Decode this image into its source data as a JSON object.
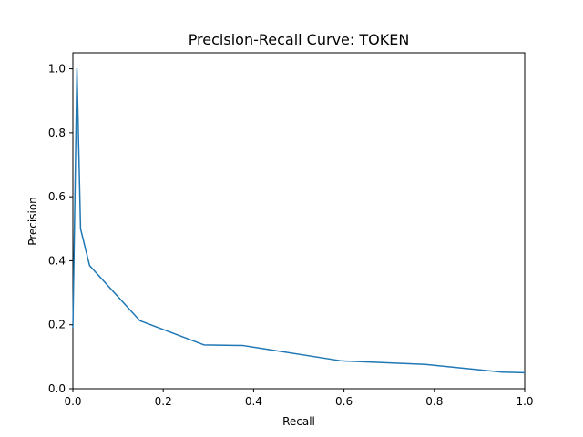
{
  "chart_data": {
    "type": "line",
    "title": "Precision-Recall Curve: TOKEN",
    "xlabel": "Recall",
    "ylabel": "Precision",
    "xlim": [
      0.0,
      1.0
    ],
    "ylim": [
      0.0,
      1.05
    ],
    "xticks": [
      "0.0",
      "0.2",
      "0.4",
      "0.6",
      "0.8",
      "1.0"
    ],
    "yticks": [
      "0.0",
      "0.2",
      "0.4",
      "0.6",
      "0.8",
      "1.0"
    ],
    "grid": false,
    "line_color": "#1f77b4",
    "series": [
      {
        "x": [
          0.0,
          0.009,
          0.017,
          0.037,
          0.148,
          0.29,
          0.377,
          0.595,
          0.78,
          0.95,
          1.0
        ],
        "y": [
          0.19,
          1.0,
          0.5,
          0.385,
          0.213,
          0.137,
          0.135,
          0.087,
          0.076,
          0.052,
          0.05
        ]
      }
    ]
  }
}
